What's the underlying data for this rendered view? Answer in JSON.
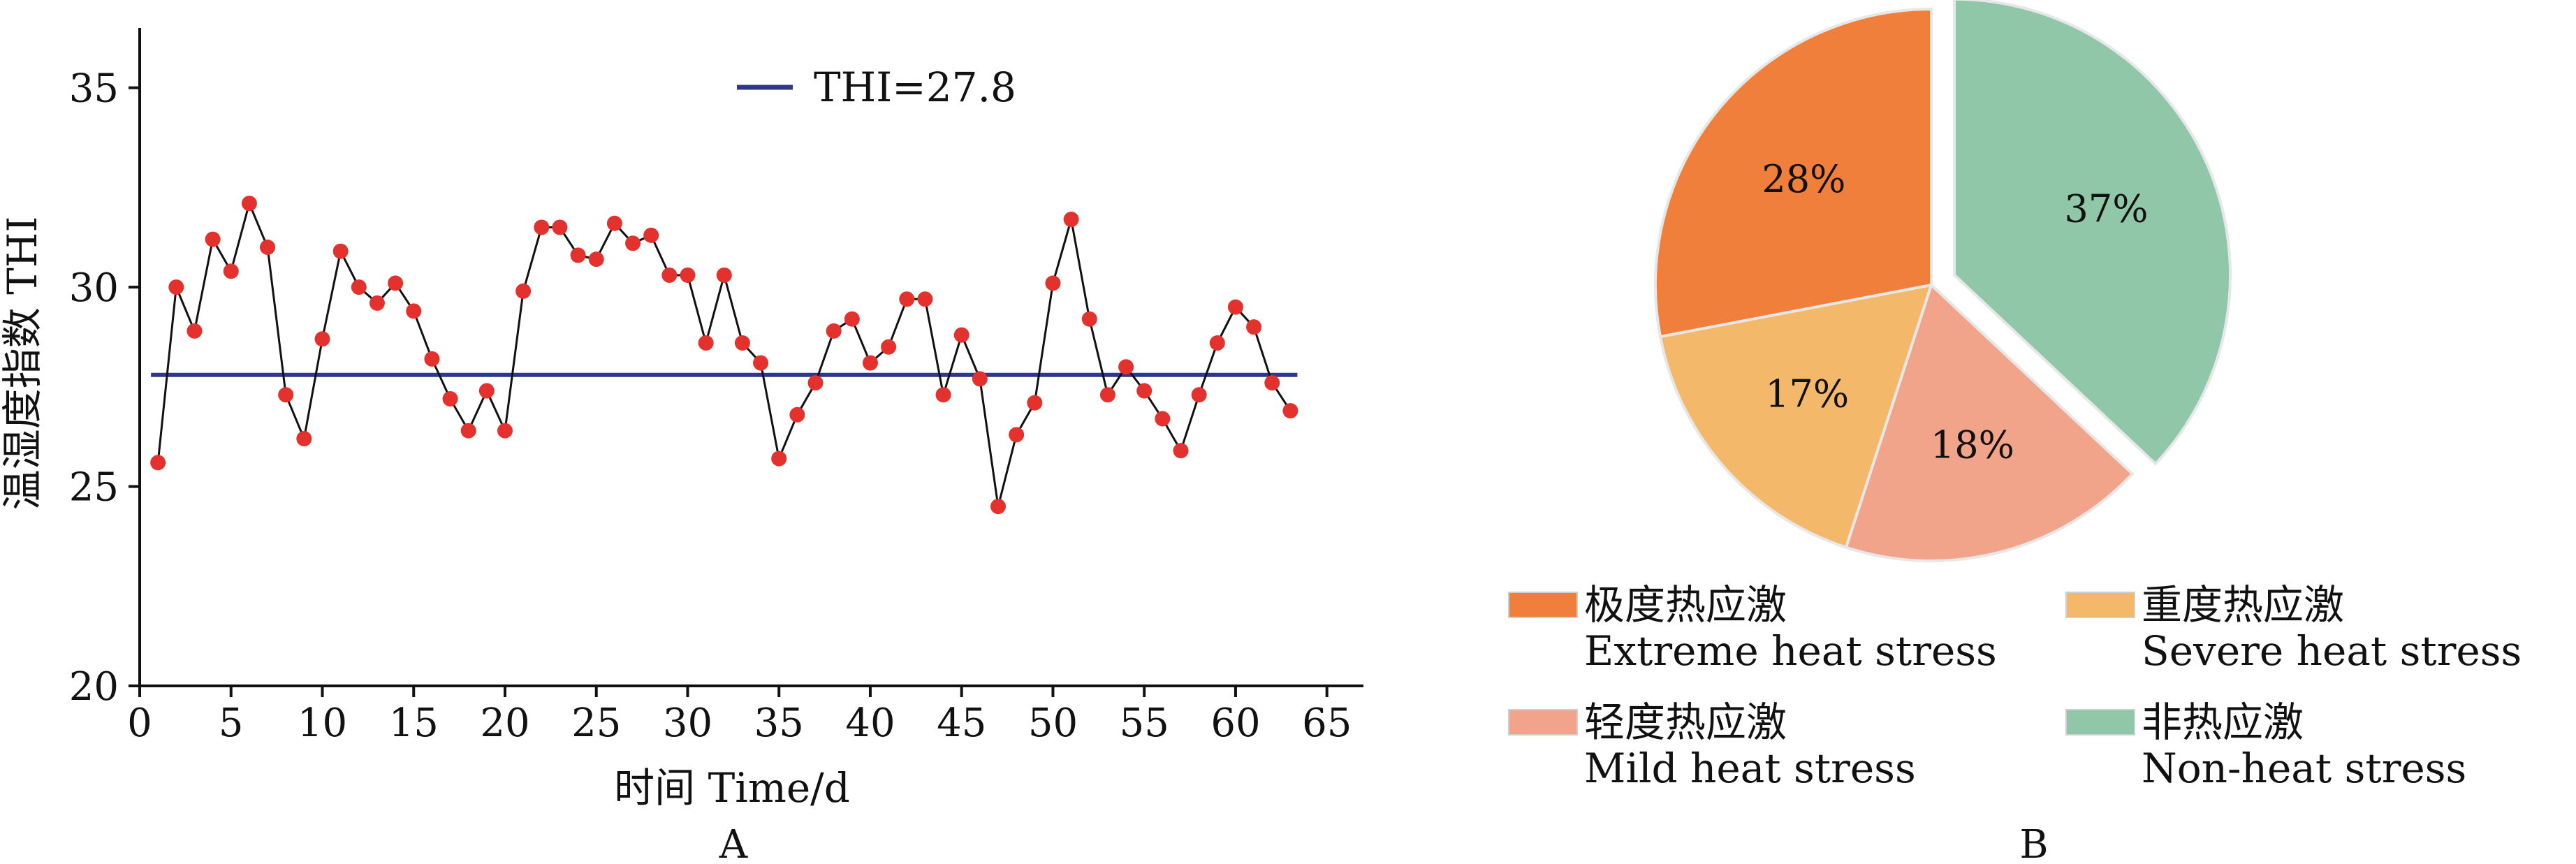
{
  "chart_data": [
    {
      "panel": "A",
      "type": "line",
      "xlabel": "时间 Time/d",
      "ylabel": "温湿度指数 THI",
      "xlim": [
        0,
        67
      ],
      "ylim": [
        20,
        36.5
      ],
      "xticks": [
        0,
        5,
        10,
        15,
        20,
        25,
        30,
        35,
        40,
        45,
        50,
        55,
        60,
        65
      ],
      "yticks": [
        20,
        25,
        30,
        35
      ],
      "grid": false,
      "series": [
        {
          "x": [
            1,
            2,
            3,
            4,
            5,
            6,
            7,
            8,
            9,
            10,
            11,
            12,
            13,
            14,
            15,
            16,
            17,
            18,
            19,
            20,
            21,
            22,
            23,
            24,
            25,
            26,
            27,
            28,
            29,
            30,
            31,
            32,
            33,
            34,
            35,
            36,
            37,
            38,
            39,
            40,
            41,
            42,
            43,
            44,
            45,
            46,
            47,
            48,
            49,
            50,
            51,
            52,
            53,
            54,
            55,
            56,
            57,
            58,
            59,
            60,
            61,
            62,
            63
          ],
          "y": [
            25.6,
            30.0,
            28.9,
            31.2,
            30.4,
            32.1,
            31.0,
            27.3,
            26.2,
            28.7,
            30.9,
            30.0,
            29.6,
            30.1,
            29.4,
            28.2,
            27.2,
            26.4,
            27.4,
            26.4,
            29.9,
            31.5,
            31.5,
            30.8,
            30.7,
            31.6,
            31.1,
            31.3,
            30.3,
            30.3,
            28.6,
            30.3,
            28.6,
            28.1,
            25.7,
            26.8,
            27.6,
            28.9,
            29.2,
            28.1,
            28.5,
            29.7,
            29.7,
            27.3,
            28.8,
            27.7,
            24.5,
            26.3,
            27.1,
            30.1,
            31.7,
            29.2,
            27.3,
            28.0,
            27.4,
            26.7,
            25.9,
            27.3,
            28.6,
            29.5,
            29.0,
            27.6,
            26.9
          ],
          "marker_color": "#e3312d",
          "line_color": "#111111"
        },
        {
          "name": "THI=27.8",
          "type": "hline",
          "y": 27.8,
          "x_range": [
            1,
            63
          ],
          "color": "#2e3a87"
        }
      ],
      "legend_position": "top-center",
      "panel_label": "A"
    },
    {
      "panel": "B",
      "type": "pie",
      "slices": [
        {
          "label": "非热应激",
          "label_en": "Non-heat stress",
          "value": 37,
          "text": "37%",
          "color": "#8fc7a8",
          "exploded": true
        },
        {
          "label": "轻度热应激",
          "label_en": "Mild heat stress",
          "value": 18,
          "text": "18%",
          "color": "#f1a48a",
          "exploded": false
        },
        {
          "label": "重度热应激",
          "label_en": "Severe heat stress",
          "value": 17,
          "text": "17%",
          "color": "#f3b86a",
          "exploded": false
        },
        {
          "label": "极度热应激",
          "label_en": "Extreme heat stress",
          "value": 28,
          "text": "28%",
          "color": "#ef7f3a",
          "exploded": false
        }
      ],
      "legend_position": "bottom",
      "legend": [
        {
          "zh": "极度热应激",
          "en": "Extreme heat stress",
          "color": "#ef7f3a"
        },
        {
          "zh": "重度热应激",
          "en": "Severe heat stress",
          "color": "#f3b86a"
        },
        {
          "zh": "轻度热应激",
          "en": "Mild heat stress",
          "color": "#f1a48a"
        },
        {
          "zh": "非热应激",
          "en": "Non-heat stress",
          "color": "#8fc7a8"
        }
      ],
      "panel_label": "B"
    }
  ]
}
